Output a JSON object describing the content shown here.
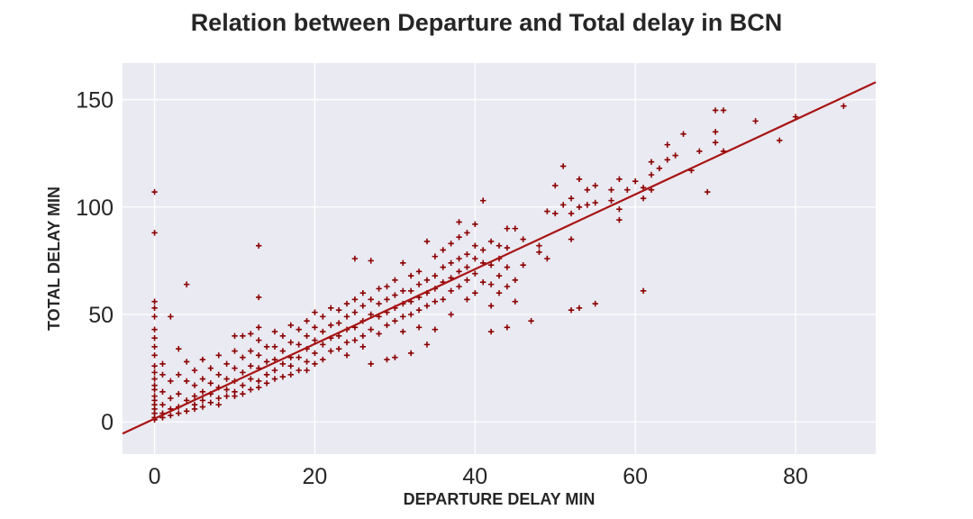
{
  "chart_data": {
    "type": "scatter",
    "title": "Relation between Departure and Total delay in BCN",
    "xlabel": "DEPARTURE DELAY MIN",
    "ylabel": "TOTAL DELAY MIN",
    "xlim": [
      -4,
      90
    ],
    "ylim": [
      -15,
      167
    ],
    "xticks": [
      0,
      20,
      40,
      60,
      80
    ],
    "yticks": [
      0,
      50,
      100,
      150
    ],
    "xtick_labels": [
      "0",
      "20",
      "40",
      "60",
      "80"
    ],
    "ytick_labels": [
      "0",
      "50",
      "100",
      "150"
    ],
    "grid": true,
    "background": "#eaeaf2",
    "marker": "+",
    "point_color": "#8b0000",
    "line_color": "#a81414",
    "regression": {
      "slope": 1.74,
      "intercept": 1.5,
      "x_range": [
        -4,
        90
      ]
    },
    "series": [
      {
        "points": [
          [
            0,
            107
          ],
          [
            0,
            88
          ],
          [
            0,
            56
          ],
          [
            0,
            53
          ],
          [
            0,
            49
          ],
          [
            0,
            43
          ],
          [
            0,
            39
          ],
          [
            0,
            35
          ],
          [
            0,
            31
          ],
          [
            0,
            26
          ],
          [
            0,
            23
          ],
          [
            0,
            20
          ],
          [
            0,
            17
          ],
          [
            0,
            15
          ],
          [
            0,
            12
          ],
          [
            0,
            10
          ],
          [
            0,
            8
          ],
          [
            0,
            6
          ],
          [
            0,
            4
          ],
          [
            0,
            2
          ],
          [
            0,
            1
          ],
          [
            1,
            27
          ],
          [
            1,
            22
          ],
          [
            1,
            14
          ],
          [
            1,
            8
          ],
          [
            1,
            4
          ],
          [
            1,
            2
          ],
          [
            2,
            49
          ],
          [
            2,
            19
          ],
          [
            2,
            11
          ],
          [
            2,
            6
          ],
          [
            2,
            3
          ],
          [
            3,
            34
          ],
          [
            3,
            22
          ],
          [
            3,
            13
          ],
          [
            3,
            7
          ],
          [
            3,
            4
          ],
          [
            4,
            64
          ],
          [
            4,
            28
          ],
          [
            4,
            19
          ],
          [
            4,
            10
          ],
          [
            4,
            5
          ],
          [
            5,
            24
          ],
          [
            5,
            17
          ],
          [
            5,
            12
          ],
          [
            5,
            8
          ],
          [
            5,
            6
          ],
          [
            6,
            29
          ],
          [
            6,
            20
          ],
          [
            6,
            14
          ],
          [
            6,
            10
          ],
          [
            6,
            7
          ],
          [
            7,
            25
          ],
          [
            7,
            18
          ],
          [
            7,
            13
          ],
          [
            7,
            9
          ],
          [
            8,
            31
          ],
          [
            8,
            22
          ],
          [
            8,
            16
          ],
          [
            8,
            11
          ],
          [
            8,
            8
          ],
          [
            9,
            27
          ],
          [
            9,
            20
          ],
          [
            9,
            15
          ],
          [
            9,
            12
          ],
          [
            10,
            40
          ],
          [
            10,
            33
          ],
          [
            10,
            25
          ],
          [
            10,
            19
          ],
          [
            10,
            14
          ],
          [
            10,
            12
          ],
          [
            11,
            40
          ],
          [
            11,
            30
          ],
          [
            11,
            23
          ],
          [
            11,
            17
          ],
          [
            11,
            13
          ],
          [
            12,
            41
          ],
          [
            12,
            33
          ],
          [
            12,
            26
          ],
          [
            12,
            20
          ],
          [
            12,
            15
          ],
          [
            13,
            82
          ],
          [
            13,
            58
          ],
          [
            13,
            44
          ],
          [
            13,
            38
          ],
          [
            13,
            31
          ],
          [
            13,
            25
          ],
          [
            13,
            19
          ],
          [
            13,
            16
          ],
          [
            14,
            35
          ],
          [
            14,
            28
          ],
          [
            14,
            22
          ],
          [
            14,
            18
          ],
          [
            15,
            42
          ],
          [
            15,
            35
          ],
          [
            15,
            29
          ],
          [
            15,
            24
          ],
          [
            15,
            20
          ],
          [
            16,
            40
          ],
          [
            16,
            33
          ],
          [
            16,
            27
          ],
          [
            16,
            21
          ],
          [
            17,
            45
          ],
          [
            17,
            37
          ],
          [
            17,
            30
          ],
          [
            17,
            26
          ],
          [
            17,
            22
          ],
          [
            18,
            43
          ],
          [
            18,
            36
          ],
          [
            18,
            30
          ],
          [
            18,
            24
          ],
          [
            19,
            47
          ],
          [
            19,
            40
          ],
          [
            19,
            34
          ],
          [
            19,
            28
          ],
          [
            19,
            24
          ],
          [
            20,
            51
          ],
          [
            20,
            44
          ],
          [
            20,
            38
          ],
          [
            20,
            32
          ],
          [
            20,
            27
          ],
          [
            21,
            49
          ],
          [
            21,
            42
          ],
          [
            21,
            36
          ],
          [
            21,
            29
          ],
          [
            22,
            53
          ],
          [
            22,
            45
          ],
          [
            22,
            39
          ],
          [
            22,
            33
          ],
          [
            23,
            52
          ],
          [
            23,
            46
          ],
          [
            23,
            40
          ],
          [
            23,
            34
          ],
          [
            24,
            55
          ],
          [
            24,
            49
          ],
          [
            24,
            43
          ],
          [
            24,
            37
          ],
          [
            24,
            31
          ],
          [
            25,
            76
          ],
          [
            25,
            57
          ],
          [
            25,
            51
          ],
          [
            25,
            44
          ],
          [
            25,
            38
          ],
          [
            26,
            60
          ],
          [
            26,
            54
          ],
          [
            26,
            47
          ],
          [
            26,
            40
          ],
          [
            26,
            35
          ],
          [
            27,
            75
          ],
          [
            27,
            57
          ],
          [
            27,
            50
          ],
          [
            27,
            43
          ],
          [
            27,
            27
          ],
          [
            28,
            62
          ],
          [
            28,
            55
          ],
          [
            28,
            49
          ],
          [
            28,
            41
          ],
          [
            29,
            63
          ],
          [
            29,
            57
          ],
          [
            29,
            51
          ],
          [
            29,
            45
          ],
          [
            29,
            29
          ],
          [
            30,
            66
          ],
          [
            30,
            59
          ],
          [
            30,
            53
          ],
          [
            30,
            47
          ],
          [
            30,
            30
          ],
          [
            31,
            74
          ],
          [
            31,
            61
          ],
          [
            31,
            55
          ],
          [
            31,
            49
          ],
          [
            31,
            42
          ],
          [
            32,
            68
          ],
          [
            32,
            61
          ],
          [
            32,
            56
          ],
          [
            32,
            50
          ],
          [
            32,
            32
          ],
          [
            33,
            70
          ],
          [
            33,
            64
          ],
          [
            33,
            58
          ],
          [
            33,
            52
          ],
          [
            33,
            44
          ],
          [
            34,
            84
          ],
          [
            34,
            66
          ],
          [
            34,
            60
          ],
          [
            34,
            54
          ],
          [
            34,
            36
          ],
          [
            35,
            77
          ],
          [
            35,
            68
          ],
          [
            35,
            62
          ],
          [
            35,
            56
          ],
          [
            35,
            43
          ],
          [
            36,
            80
          ],
          [
            36,
            72
          ],
          [
            36,
            65
          ],
          [
            36,
            57
          ],
          [
            37,
            83
          ],
          [
            37,
            74
          ],
          [
            37,
            67
          ],
          [
            37,
            61
          ],
          [
            37,
            50
          ],
          [
            38,
            93
          ],
          [
            38,
            86
          ],
          [
            38,
            76
          ],
          [
            38,
            70
          ],
          [
            38,
            63
          ],
          [
            39,
            88
          ],
          [
            39,
            78
          ],
          [
            39,
            72
          ],
          [
            39,
            66
          ],
          [
            39,
            57
          ],
          [
            40,
            92
          ],
          [
            40,
            82
          ],
          [
            40,
            76
          ],
          [
            40,
            69
          ],
          [
            40,
            60
          ],
          [
            41,
            103
          ],
          [
            41,
            80
          ],
          [
            41,
            74
          ],
          [
            41,
            65
          ],
          [
            42,
            84
          ],
          [
            42,
            73
          ],
          [
            42,
            64
          ],
          [
            42,
            54
          ],
          [
            42,
            42
          ],
          [
            43,
            82
          ],
          [
            43,
            76
          ],
          [
            43,
            68
          ],
          [
            43,
            60
          ],
          [
            44,
            90
          ],
          [
            44,
            81
          ],
          [
            44,
            72
          ],
          [
            44,
            63
          ],
          [
            44,
            44
          ],
          [
            45,
            90
          ],
          [
            45,
            66
          ],
          [
            45,
            56
          ],
          [
            46,
            85
          ],
          [
            46,
            73
          ],
          [
            47,
            47
          ],
          [
            48,
            82
          ],
          [
            48,
            79
          ],
          [
            49,
            98
          ],
          [
            49,
            76
          ],
          [
            50,
            110
          ],
          [
            50,
            97
          ],
          [
            51,
            119
          ],
          [
            51,
            101
          ],
          [
            52,
            104
          ],
          [
            52,
            97
          ],
          [
            52,
            85
          ],
          [
            52,
            52
          ],
          [
            53,
            113
          ],
          [
            53,
            100
          ],
          [
            53,
            53
          ],
          [
            54,
            108
          ],
          [
            54,
            101
          ],
          [
            55,
            110
          ],
          [
            55,
            102
          ],
          [
            55,
            55
          ],
          [
            57,
            108
          ],
          [
            57,
            103
          ],
          [
            58,
            113
          ],
          [
            58,
            99
          ],
          [
            58,
            94
          ],
          [
            59,
            108
          ],
          [
            60,
            112
          ],
          [
            61,
            109
          ],
          [
            61,
            104
          ],
          [
            61,
            61
          ],
          [
            62,
            121
          ],
          [
            62,
            115
          ],
          [
            62,
            108
          ],
          [
            63,
            118
          ],
          [
            64,
            129
          ],
          [
            64,
            122
          ],
          [
            65,
            124
          ],
          [
            66,
            134
          ],
          [
            67,
            117
          ],
          [
            68,
            126
          ],
          [
            69,
            107
          ],
          [
            70,
            145
          ],
          [
            70,
            135
          ],
          [
            70,
            130
          ],
          [
            71,
            145
          ],
          [
            71,
            126
          ],
          [
            75,
            140
          ],
          [
            78,
            131
          ],
          [
            80,
            142
          ],
          [
            86,
            147
          ]
        ]
      }
    ]
  }
}
